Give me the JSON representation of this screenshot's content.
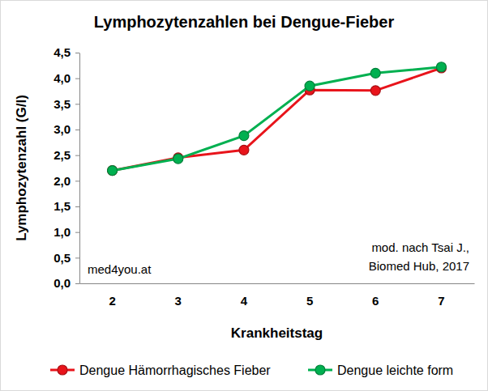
{
  "chart_data": {
    "type": "line",
    "title": "Lymphozytenzahlen bei Dengue-Fieber",
    "x_label": "Krankheitstag",
    "y_label": "Lymphozytenzahl (G/l)",
    "categories": [
      "2",
      "3",
      "4",
      "5",
      "6",
      "7"
    ],
    "series": [
      {
        "name": "Dengue Hämorrhagisches Fieber",
        "color": "#e8141b",
        "marker": "circle",
        "line_style": "solid",
        "values": [
          2.2,
          2.45,
          2.6,
          3.77,
          3.76,
          4.2
        ]
      },
      {
        "name": "Dengue leichte form",
        "color": "#00b050",
        "marker": "circle",
        "line_style": "solid",
        "values": [
          2.2,
          2.43,
          2.88,
          3.85,
          4.1,
          4.22
        ]
      }
    ],
    "ylim": [
      0,
      4.5
    ],
    "yticks": [
      {
        "value": 0,
        "label": "0,0"
      },
      {
        "value": 0.5,
        "label": "0,5"
      },
      {
        "value": 1,
        "label": "1,0"
      },
      {
        "value": 1.5,
        "label": "1,5"
      },
      {
        "value": 2,
        "label": "2,0"
      },
      {
        "value": 2.5,
        "label": "2,5"
      },
      {
        "value": 3,
        "label": "3,0"
      },
      {
        "value": 3.5,
        "label": "3,5"
      },
      {
        "value": 4,
        "label": "4,0"
      },
      {
        "value": 4.5,
        "label": "4,5"
      }
    ],
    "grid": false,
    "legend": "bottom",
    "annotations": [
      "med4you.at",
      "mod. nach Tsai J.,",
      "Biomed Hub, 2017"
    ]
  }
}
